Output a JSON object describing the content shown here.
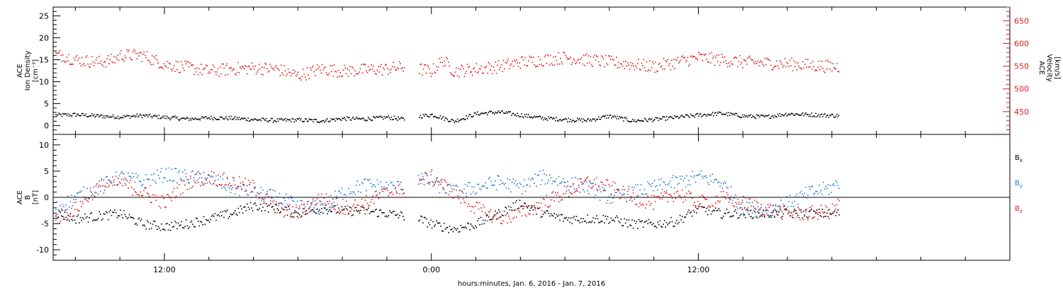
{
  "colors": {
    "axis": "#000000",
    "density": "#000000",
    "velocity": "#e31a1c",
    "bx": "#000000",
    "by": "#1f78d4",
    "bz": "#e31a1c"
  },
  "chart_data": [
    {
      "type": "scatter",
      "panel": "top",
      "ylabel_lines": [
        "ACE",
        "Ion Density",
        "[cm⁻³]"
      ],
      "ylim": [
        -2,
        27
      ],
      "yticks": [
        0,
        5,
        10,
        15,
        20,
        25
      ],
      "right_axis": {
        "label_lines": [
          "ACE",
          "Velocity",
          "[km/s]"
        ],
        "ylim": [
          400,
          680
        ],
        "yticks": [
          450,
          500,
          550,
          600,
          650
        ]
      },
      "series": [
        {
          "axis": "left",
          "color": "#000000",
          "points": [
            [
              7.1,
              2.5
            ],
            [
              8,
              2.6
            ],
            [
              9,
              2.3
            ],
            [
              10,
              2.1
            ],
            [
              11,
              2.4
            ],
            [
              12,
              2.0
            ],
            [
              13,
              1.6
            ],
            [
              14,
              1.9
            ],
            [
              15,
              1.8
            ],
            [
              16,
              1.5
            ],
            [
              17,
              1.3
            ],
            [
              18,
              1.4
            ],
            [
              19,
              1.2
            ],
            [
              20,
              1.7
            ],
            [
              21,
              1.6
            ],
            [
              22,
              2.0
            ],
            [
              22.8,
              1.5
            ],
            [
              23.4,
              2.2
            ],
            [
              24,
              2.6
            ],
            [
              25,
              1.1
            ],
            [
              26,
              2.8
            ],
            [
              27,
              3.2
            ],
            [
              28,
              2.5
            ],
            [
              29,
              1.8
            ],
            [
              30,
              1.5
            ],
            [
              31,
              1.3
            ],
            [
              32,
              2.3
            ],
            [
              33,
              1.2
            ],
            [
              34,
              1.5
            ],
            [
              35,
              2.0
            ],
            [
              36,
              2.5
            ],
            [
              37,
              2.9
            ],
            [
              38,
              2.3
            ],
            [
              39,
              2.1
            ],
            [
              40,
              2.8
            ],
            [
              41,
              2.6
            ],
            [
              42,
              2.4
            ],
            [
              42.3,
              2.4
            ]
          ],
          "gaps": [
            [
              22.8,
              23.4
            ]
          ]
        },
        {
          "axis": "right",
          "color": "#e31a1c",
          "points": [
            [
              7.1,
              575
            ],
            [
              7.4,
              575
            ],
            [
              8,
              565
            ],
            [
              9,
              560
            ],
            [
              9.7,
              565
            ],
            [
              10,
              575
            ],
            [
              11,
              575
            ],
            [
              11.5,
              565
            ],
            [
              12,
              555
            ],
            [
              13,
              548
            ],
            [
              14,
              540
            ],
            [
              15,
              545
            ],
            [
              16,
              547
            ],
            [
              17,
              545
            ],
            [
              18,
              530
            ],
            [
              19,
              545
            ],
            [
              20,
              540
            ],
            [
              21,
              543
            ],
            [
              22,
              545
            ],
            [
              22.8,
              550
            ],
            [
              23.4,
              545
            ],
            [
              24,
              540
            ],
            [
              24.5,
              565
            ],
            [
              25,
              540
            ],
            [
              26,
              545
            ],
            [
              27,
              550
            ],
            [
              28,
              560
            ],
            [
              29,
              565
            ],
            [
              30,
              570
            ],
            [
              31,
              565
            ],
            [
              32,
              560
            ],
            [
              33,
              555
            ],
            [
              34,
              550
            ],
            [
              35,
              560
            ],
            [
              36,
              570
            ],
            [
              37,
              565
            ],
            [
              38,
              560
            ],
            [
              39,
              558
            ],
            [
              40,
              556
            ],
            [
              41,
              553
            ],
            [
              42,
              550
            ],
            [
              42.3,
              550
            ]
          ],
          "gaps": [
            [
              22.8,
              23.4
            ]
          ]
        }
      ]
    },
    {
      "type": "scatter",
      "panel": "bottom",
      "ylabel_lines": [
        "ACE",
        "B",
        "[nT]"
      ],
      "ylim": [
        -12,
        12
      ],
      "yticks": [
        -10,
        -5,
        0,
        5,
        10
      ],
      "zero_line": true,
      "series": [
        {
          "name": "Bx",
          "color": "#000000",
          "points": [
            [
              7.1,
              -3
            ],
            [
              8,
              -4
            ],
            [
              9,
              -3.5
            ],
            [
              10,
              -3
            ],
            [
              11,
              -5
            ],
            [
              12,
              -5.5
            ],
            [
              13,
              -5
            ],
            [
              14,
              -4
            ],
            [
              15,
              -3
            ],
            [
              16,
              -1.5
            ],
            [
              17,
              -2
            ],
            [
              18,
              -3
            ],
            [
              19,
              -2
            ],
            [
              20,
              -2.5
            ],
            [
              21,
              -2.5
            ],
            [
              22,
              -3
            ],
            [
              22.8,
              -3.5
            ],
            [
              23.4,
              -4
            ],
            [
              24,
              -5
            ],
            [
              25,
              -6
            ],
            [
              26,
              -5
            ],
            [
              27,
              -3
            ],
            [
              28,
              -1
            ],
            [
              29,
              -3
            ],
            [
              30,
              -4
            ],
            [
              31,
              -4
            ],
            [
              32,
              -4
            ],
            [
              33,
              -5
            ],
            [
              34,
              -5
            ],
            [
              35,
              -4.5
            ],
            [
              36,
              -2
            ],
            [
              37,
              -3
            ],
            [
              38,
              -3
            ],
            [
              39,
              -3
            ],
            [
              40,
              -3
            ],
            [
              41,
              -3
            ],
            [
              42,
              -3
            ],
            [
              42.3,
              -3
            ]
          ],
          "gaps": [
            [
              22.8,
              23.4
            ]
          ]
        },
        {
          "name": "By",
          "color": "#1f78d4",
          "points": [
            [
              7.1,
              -2
            ],
            [
              8,
              0
            ],
            [
              9,
              2
            ],
            [
              10,
              4
            ],
            [
              11,
              3
            ],
            [
              12,
              4.5
            ],
            [
              13,
              4
            ],
            [
              14,
              3.5
            ],
            [
              15,
              2
            ],
            [
              16,
              1
            ],
            [
              17,
              0
            ],
            [
              18,
              -1.5
            ],
            [
              19,
              -2
            ],
            [
              20,
              1
            ],
            [
              21,
              2.5
            ],
            [
              22,
              2
            ],
            [
              22.8,
              2
            ],
            [
              23.4,
              4
            ],
            [
              24,
              3
            ],
            [
              25,
              1
            ],
            [
              26,
              2
            ],
            [
              27,
              3
            ],
            [
              28,
              2
            ],
            [
              29,
              4
            ],
            [
              30,
              3
            ],
            [
              31,
              2
            ],
            [
              32,
              0
            ],
            [
              33,
              1
            ],
            [
              34,
              2
            ],
            [
              35,
              3
            ],
            [
              36,
              4
            ],
            [
              37,
              3
            ],
            [
              38,
              -2
            ],
            [
              39,
              -2.5
            ],
            [
              40,
              -1
            ],
            [
              41,
              1
            ],
            [
              42,
              2
            ],
            [
              42.3,
              3
            ]
          ],
          "gaps": [
            [
              22.8,
              23.4
            ]
          ]
        },
        {
          "name": "Bz",
          "color": "#e31a1c",
          "points": [
            [
              7.1,
              -4
            ],
            [
              8,
              -2
            ],
            [
              9,
              2
            ],
            [
              10,
              3
            ],
            [
              11,
              1
            ],
            [
              12,
              -1
            ],
            [
              13,
              3
            ],
            [
              14,
              4
            ],
            [
              15,
              3
            ],
            [
              16,
              2
            ],
            [
              17,
              -2
            ],
            [
              18,
              -3
            ],
            [
              19,
              0
            ],
            [
              20,
              -2
            ],
            [
              21,
              -1
            ],
            [
              22,
              1
            ],
            [
              22.8,
              2
            ],
            [
              23.4,
              3
            ],
            [
              24,
              4
            ],
            [
              25,
              1
            ],
            [
              26,
              -2
            ],
            [
              27,
              -4
            ],
            [
              28,
              -3
            ],
            [
              29,
              -1
            ],
            [
              30,
              1
            ],
            [
              31,
              3
            ],
            [
              32,
              2
            ],
            [
              33,
              0
            ],
            [
              34,
              -1
            ],
            [
              35,
              1
            ],
            [
              36,
              -1
            ],
            [
              37,
              0
            ],
            [
              38,
              -1
            ],
            [
              39,
              -2
            ],
            [
              40,
              -3
            ],
            [
              41,
              -3
            ],
            [
              42,
              -2.5
            ],
            [
              42.3,
              -1
            ]
          ],
          "gaps": [
            [
              22.8,
              23.4
            ]
          ]
        }
      ],
      "legend": {
        "placement": "right",
        "entries": [
          {
            "label": "B",
            "sub": "x",
            "color": "#000000"
          },
          {
            "label": "B",
            "sub": "y",
            "color": "#1f78d4"
          },
          {
            "label": "B",
            "sub": "z",
            "color": "#e31a1c"
          }
        ]
      }
    }
  ],
  "time_axis": {
    "unit": "hours",
    "xlim": [
      7.0,
      50.0
    ],
    "major_ticks": [
      {
        "x": 12,
        "label": "12:00"
      },
      {
        "x": 24,
        "label": "0:00"
      },
      {
        "x": 36,
        "label": "12:00"
      }
    ],
    "minor_step": 2,
    "xlabel": "hours:minutes, Jan.  6, 2016 - Jan.  7, 2016"
  }
}
